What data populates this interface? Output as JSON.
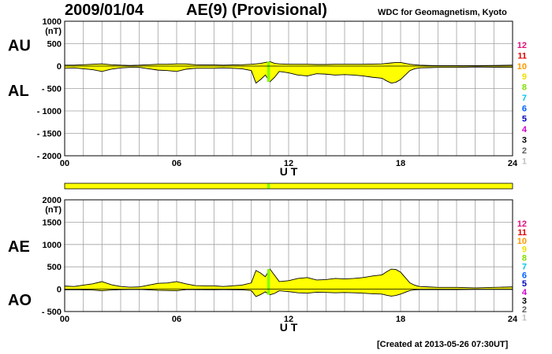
{
  "header": {
    "date": "2009/01/04",
    "title": "AE(9)  (Provisional)",
    "source": "WDC for Geomagnetism, Kyoto"
  },
  "footer": {
    "created": "[Created at 2013-05-26 07:30UT]"
  },
  "colors": {
    "fill": "#ffff00",
    "highlight": "#80ff00",
    "grid": "#a0a0a0",
    "frame": "#000000"
  },
  "station_legend": [
    {
      "label": "12",
      "color": "#e0107a"
    },
    {
      "label": "11",
      "color": "#e00000"
    },
    {
      "label": "10",
      "color": "#ff9900"
    },
    {
      "label": "9",
      "color": "#f0e000"
    },
    {
      "label": "8",
      "color": "#80e000"
    },
    {
      "label": "7",
      "color": "#00c8e8"
    },
    {
      "label": "6",
      "color": "#0060ff"
    },
    {
      "label": "5",
      "color": "#0000c0"
    },
    {
      "label": "4",
      "color": "#d000d0"
    },
    {
      "label": "3",
      "color": "#000000"
    },
    {
      "label": "2",
      "color": "#606060"
    },
    {
      "label": "1",
      "color": "#c0c0c0"
    }
  ],
  "data_coverage": {
    "label": "",
    "highlight_hours": [
      10.85,
      11.0
    ]
  },
  "chart_data": [
    {
      "type": "area",
      "title": "",
      "xlabel": "U T",
      "ylabel": "(nT)",
      "upper_series": "AU",
      "lower_series": "AL",
      "xlim": [
        0,
        24
      ],
      "ylim": [
        -2000,
        1000
      ],
      "xticks": [
        0,
        6,
        12,
        18,
        24
      ],
      "xtick_labels": [
        "00",
        "06",
        "12",
        "18",
        "24"
      ],
      "yticks": [
        1000,
        500,
        0,
        -500,
        -1000,
        -1500,
        -2000
      ],
      "ytick_labels": [
        "1000",
        "500",
        "0",
        "- 500",
        "- 1000",
        "- 1500",
        "- 2000"
      ],
      "grid": true,
      "highlight_hours": [
        10.85,
        11.0
      ],
      "series": [
        {
          "name": "AU",
          "x": [
            0,
            0.5,
            1,
            1.5,
            2,
            2.5,
            3,
            3.5,
            4,
            4.5,
            5,
            5.5,
            6,
            6.5,
            7,
            7.5,
            8,
            8.5,
            9,
            9.5,
            10,
            10.25,
            10.5,
            10.75,
            11,
            11.25,
            11.5,
            12,
            12.5,
            13,
            13.5,
            14,
            14.5,
            15,
            15.5,
            16,
            16.5,
            17,
            17.25,
            17.5,
            17.75,
            18,
            18.25,
            18.5,
            18.75,
            19,
            19.5,
            20,
            21,
            22,
            23,
            24
          ],
          "values": [
            20,
            20,
            30,
            40,
            50,
            30,
            20,
            15,
            20,
            30,
            40,
            40,
            50,
            50,
            30,
            25,
            25,
            20,
            25,
            30,
            40,
            50,
            60,
            80,
            100,
            60,
            50,
            40,
            40,
            40,
            35,
            35,
            40,
            40,
            40,
            40,
            45,
            50,
            60,
            70,
            80,
            80,
            60,
            40,
            30,
            20,
            15,
            10,
            10,
            10,
            15,
            20
          ]
        },
        {
          "name": "AL",
          "x": [
            0,
            0.5,
            1,
            1.5,
            2,
            2.5,
            3,
            3.5,
            4,
            4.5,
            5,
            5.5,
            6,
            6.5,
            7,
            7.5,
            8,
            8.5,
            9,
            9.5,
            10,
            10.25,
            10.5,
            10.75,
            11,
            11.25,
            11.5,
            12,
            12.5,
            13,
            13.5,
            14,
            14.5,
            15,
            15.5,
            16,
            16.5,
            17,
            17.25,
            17.5,
            17.75,
            18,
            18.25,
            18.5,
            18.75,
            19,
            19.5,
            20,
            21,
            22,
            23,
            24
          ],
          "values": [
            -50,
            -40,
            -60,
            -80,
            -120,
            -70,
            -40,
            -30,
            -30,
            -60,
            -90,
            -100,
            -120,
            -70,
            -50,
            -50,
            -50,
            -40,
            -50,
            -60,
            -100,
            -380,
            -300,
            -200,
            -350,
            -250,
            -120,
            -150,
            -200,
            -220,
            -170,
            -180,
            -200,
            -190,
            -200,
            -220,
            -250,
            -270,
            -330,
            -380,
            -360,
            -300,
            -200,
            -100,
            -60,
            -40,
            -35,
            -30,
            -30,
            -20,
            -25,
            -30
          ]
        }
      ]
    },
    {
      "type": "area",
      "title": "",
      "xlabel": "U T",
      "ylabel": "(nT)",
      "upper_series": "AE",
      "lower_series": "AO",
      "xlim": [
        0,
        24
      ],
      "ylim": [
        -500,
        2000
      ],
      "xticks": [
        0,
        6,
        12,
        18,
        24
      ],
      "xtick_labels": [
        "00",
        "06",
        "12",
        "18",
        "24"
      ],
      "yticks": [
        2000,
        1500,
        1000,
        500,
        0,
        -500
      ],
      "ytick_labels": [
        "2000",
        "1500",
        "1000",
        "500",
        "0",
        "- 500"
      ],
      "grid": true,
      "highlight_hours": [
        10.85,
        11.0
      ],
      "series": [
        {
          "name": "AE",
          "x": [
            0,
            0.5,
            1,
            1.5,
            2,
            2.5,
            3,
            3.5,
            4,
            4.5,
            5,
            5.5,
            6,
            6.5,
            7,
            7.5,
            8,
            8.5,
            9,
            9.5,
            10,
            10.25,
            10.5,
            10.75,
            11,
            11.25,
            11.5,
            12,
            12.5,
            13,
            13.5,
            14,
            14.5,
            15,
            15.5,
            16,
            16.5,
            17,
            17.25,
            17.5,
            17.75,
            18,
            18.25,
            18.5,
            18.75,
            19,
            19.5,
            20,
            21,
            22,
            23,
            24
          ],
          "values": [
            70,
            60,
            90,
            120,
            170,
            100,
            60,
            45,
            50,
            90,
            130,
            140,
            170,
            120,
            80,
            75,
            75,
            60,
            75,
            90,
            140,
            420,
            360,
            280,
            450,
            310,
            170,
            190,
            240,
            260,
            205,
            215,
            240,
            230,
            240,
            260,
            295,
            320,
            390,
            450,
            440,
            380,
            260,
            140,
            90,
            60,
            50,
            40,
            40,
            30,
            40,
            50
          ]
        },
        {
          "name": "AO",
          "x": [
            0,
            0.5,
            1,
            1.5,
            2,
            2.5,
            3,
            3.5,
            4,
            4.5,
            5,
            5.5,
            6,
            6.5,
            7,
            7.5,
            8,
            8.5,
            9,
            9.5,
            10,
            10.25,
            10.5,
            10.75,
            11,
            11.25,
            11.5,
            12,
            12.5,
            13,
            13.5,
            14,
            14.5,
            15,
            15.5,
            16,
            16.5,
            17,
            17.25,
            17.5,
            17.75,
            18,
            18.25,
            18.5,
            18.75,
            19,
            19.5,
            20,
            21,
            22,
            23,
            24
          ],
          "values": [
            -15,
            -10,
            -15,
            -20,
            -35,
            -20,
            -10,
            -8,
            -5,
            -15,
            -25,
            -30,
            -35,
            -10,
            -10,
            -12,
            -12,
            -10,
            -12,
            -15,
            -30,
            -165,
            -120,
            -60,
            -125,
            -95,
            -35,
            -55,
            -80,
            -90,
            -68,
            -72,
            -80,
            -75,
            -80,
            -90,
            -102,
            -110,
            -135,
            -155,
            -140,
            -110,
            -70,
            -30,
            -15,
            -10,
            -10,
            -10,
            -10,
            -5,
            -5,
            -5
          ]
        }
      ]
    }
  ]
}
